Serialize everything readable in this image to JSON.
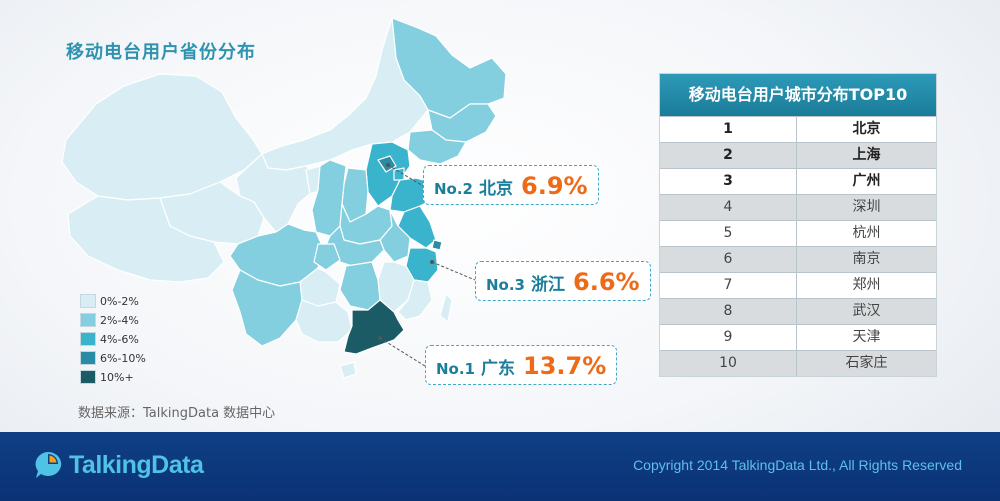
{
  "map_title": "移动电台用户省份分布",
  "colors": {
    "bin1": "#d9eef4",
    "bin2": "#84cfdf",
    "bin3": "#3ab3cc",
    "bin4": "#2a8ba4",
    "bin5": "#1a5b66",
    "accent": "#ef6a16",
    "brand": "#1b7e9a"
  },
  "legend": [
    {
      "label": "0%-2%",
      "color": "#d9eef4"
    },
    {
      "label": "2%-4%",
      "color": "#84cfdf"
    },
    {
      "label": "4%-6%",
      "color": "#3ab3cc"
    },
    {
      "label": "6%-10%",
      "color": "#2a8ba4"
    },
    {
      "label": "10%+",
      "color": "#1a5b66"
    }
  ],
  "callouts": [
    {
      "rank": "No.2",
      "name": "北京",
      "value": "6.9%"
    },
    {
      "rank": "No.3",
      "name": "浙江",
      "value": "6.6%"
    },
    {
      "rank": "No.1",
      "name": "广东",
      "value": "13.7%"
    }
  ],
  "source": "数据来源：TalkingData 数据中心",
  "table": {
    "title": "移动电台用户城市分布TOP10",
    "rows": [
      {
        "rank": "1",
        "city": "北京"
      },
      {
        "rank": "2",
        "city": "上海"
      },
      {
        "rank": "3",
        "city": "广州"
      },
      {
        "rank": "4",
        "city": "深圳"
      },
      {
        "rank": "5",
        "city": "杭州"
      },
      {
        "rank": "6",
        "city": "南京"
      },
      {
        "rank": "7",
        "city": "郑州"
      },
      {
        "rank": "8",
        "city": "武汉"
      },
      {
        "rank": "9",
        "city": "天津"
      },
      {
        "rank": "10",
        "city": "石家庄"
      }
    ]
  },
  "chart_data": [
    {
      "type": "heatmap",
      "title": "移动电台用户省份分布",
      "legend_bins": [
        "0%-2%",
        "2%-4%",
        "4%-6%",
        "6%-10%",
        "10%+"
      ],
      "highlighted": [
        {
          "region": "广东",
          "rank": 1,
          "value_pct": 13.7
        },
        {
          "region": "北京",
          "rank": 2,
          "value_pct": 6.9
        },
        {
          "region": "浙江",
          "rank": 3,
          "value_pct": 6.6
        }
      ]
    },
    {
      "type": "table",
      "title": "移动电台用户城市分布TOP10",
      "ranks": [
        1,
        2,
        3,
        4,
        5,
        6,
        7,
        8,
        9,
        10
      ],
      "cities": [
        "北京",
        "上海",
        "广州",
        "深圳",
        "杭州",
        "南京",
        "郑州",
        "武汉",
        "天津",
        "石家庄"
      ]
    }
  ],
  "footer": {
    "logo_text": "TalkingData",
    "copyright": "Copyright 2014 TalkingData Ltd., All Rights Reserved"
  }
}
